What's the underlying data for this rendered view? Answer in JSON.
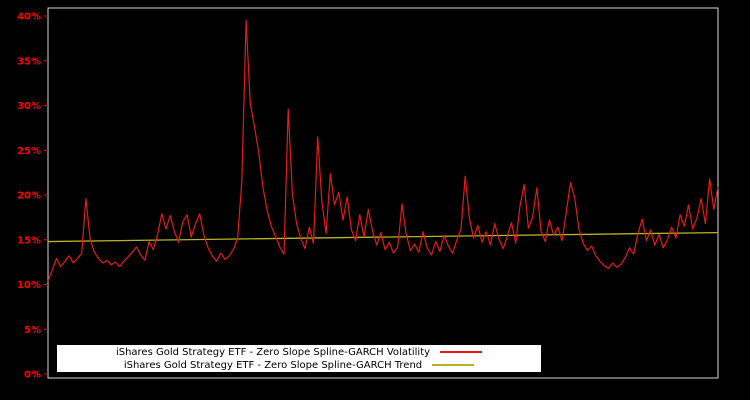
{
  "legend": {
    "items": [
      {
        "label": "iShares Gold Strategy ETF - Zero Slope Spline-GARCH Volatility",
        "color": "#e31b1c"
      },
      {
        "label": "iShares Gold Strategy ETF - Zero Slope Spline-GARCH Trend",
        "color": "#b9b425"
      }
    ]
  },
  "chart_data": {
    "type": "line",
    "title": "",
    "xlabel": "",
    "ylabel": "",
    "ylim": [
      0,
      40
    ],
    "ytick_step": 5,
    "yticks": [
      "0%",
      "5%",
      "10%",
      "15%",
      "20%",
      "25%",
      "30%",
      "35%",
      "40%"
    ],
    "grid": false,
    "legend_position": "bottom-center",
    "colors": {
      "background": "#000000",
      "frame": "#d9d9d9",
      "tick_label": "#ff0000",
      "volatility": "#e31b1c",
      "trend": "#b9b425",
      "legend_bg": "#ffffff",
      "legend_text": "#000000"
    },
    "series": [
      {
        "name": "iShares Gold Strategy ETF - Zero Slope Spline-GARCH Volatility",
        "color": "#e31b1c",
        "values": [
          10.4,
          11.6,
          12.9,
          12.0,
          12.6,
          13.2,
          12.4,
          12.9,
          13.5,
          19.6,
          15.1,
          13.6,
          12.9,
          12.4,
          12.7,
          12.2,
          12.5,
          12.0,
          12.6,
          13.1,
          13.6,
          14.2,
          13.3,
          12.7,
          14.8,
          13.9,
          15.6,
          17.9,
          16.2,
          17.7,
          15.9,
          14.7,
          17.0,
          17.8,
          15.3,
          16.8,
          17.9,
          15.5,
          14.1,
          13.2,
          12.6,
          13.5,
          12.8,
          13.2,
          13.9,
          15.2,
          21.5,
          39.5,
          30.2,
          27.6,
          24.8,
          20.9,
          18.3,
          16.5,
          15.4,
          14.2,
          13.4,
          29.6,
          20.1,
          16.8,
          15.1,
          14.0,
          16.4,
          14.6,
          26.5,
          19.2,
          15.7,
          22.4,
          18.9,
          20.3,
          17.2,
          19.8,
          16.1,
          14.9,
          17.8,
          15.3,
          18.4,
          16.0,
          14.4,
          15.8,
          13.9,
          14.7,
          13.5,
          14.2,
          19.0,
          15.6,
          13.8,
          14.5,
          13.6,
          15.9,
          14.1,
          13.3,
          14.8,
          13.7,
          15.5,
          14.3,
          13.5,
          14.9,
          16.2,
          22.1,
          17.4,
          15.2,
          16.6,
          14.7,
          15.9,
          14.4,
          16.8,
          15.1,
          14.0,
          15.4,
          16.9,
          14.6,
          18.7,
          21.2,
          16.3,
          17.5,
          20.8,
          16.0,
          14.8,
          17.2,
          15.5,
          16.4,
          14.9,
          18.1,
          21.4,
          19.7,
          16.2,
          14.6,
          13.8,
          14.3,
          13.2,
          12.6,
          12.1,
          11.8,
          12.4,
          11.9,
          12.3,
          13.0,
          14.1,
          13.4,
          15.7,
          17.3,
          14.9,
          16.1,
          14.4,
          15.6,
          14.1,
          15.0,
          16.4,
          15.2,
          17.8,
          16.5,
          18.9,
          16.2,
          17.4,
          19.6,
          16.8,
          21.8,
          18.4,
          20.9
        ]
      },
      {
        "name": "iShares Gold Strategy ETF - Zero Slope Spline-GARCH Trend",
        "color": "#b9b425",
        "shape": "linear",
        "values": [
          14.8,
          15.8
        ]
      }
    ]
  }
}
